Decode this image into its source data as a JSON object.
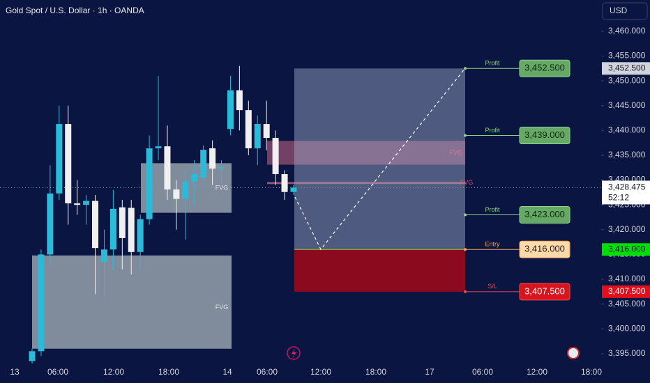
{
  "chart_data": {
    "type": "candlestick",
    "title": "Gold Spot / U.S. Dollar · 1h · OANDA",
    "currency": "USD",
    "up_color": "#2bbad8",
    "down_color": "#f0f0f0",
    "open": [
      3393.5,
      3395.5,
      3415,
      3427.3,
      3441.3,
      3425.3,
      3425,
      3425.8,
      3413.5,
      3416,
      3424.5,
      3424.4,
      3415.5,
      3422.1,
      3436.4,
      3436.8,
      3428.1,
      3426.2,
      3429.7,
      3430.5,
      3436.4,
      3432.3,
      3440.3,
      3448.1,
      3444.1,
      3436.4,
      3441.3,
      3438.5,
      3431.2,
      3427.6
    ],
    "high": [
      3396,
      3416,
      3433,
      3445,
      3445,
      3430,
      3427,
      3427,
      3420,
      3428,
      3426,
      3426,
      3423,
      3439,
      3451,
      3441,
      3430,
      3432,
      3434,
      3437,
      3438,
      3434,
      3451,
      3453,
      3446,
      3443,
      3446,
      3440,
      3432,
      3429
    ],
    "low": [
      3393,
      3394.5,
      3413,
      3426,
      3421,
      3423,
      3421,
      3407,
      3406,
      3412,
      3412,
      3411,
      3412,
      3421,
      3434,
      3426,
      3420,
      3418,
      3425,
      3428,
      3429,
      3429,
      3439,
      3440,
      3435,
      3433,
      3436,
      3429,
      3426,
      3427
    ],
    "close": [
      3395.5,
      3415,
      3427.3,
      3441.3,
      3425.3,
      3425,
      3425.8,
      3416.3,
      3416,
      3424.2,
      3418.3,
      3415.5,
      3422.1,
      3436.4,
      3436.8,
      3428.1,
      3426.2,
      3429.7,
      3431.2,
      3436.1,
      3432.3,
      3432.6,
      3448.1,
      3444.1,
      3436.4,
      3441.3,
      3438.5,
      3431.2,
      3427.6,
      3428.475
    ],
    "x_labels": [
      "13",
      "06:00",
      "12:00",
      "18:00",
      "14",
      "06:00",
      "12:00",
      "18:00",
      "17",
      "06:00",
      "12:00",
      "18:00"
    ],
    "ylim": [
      3393.3,
      3466.3
    ],
    "yticks": [
      {
        "value": 3395,
        "label": "3,395.000"
      },
      {
        "value": 3400,
        "label": "3,400.000"
      },
      {
        "value": 3405,
        "label": "3,405.000"
      },
      {
        "value": 3410,
        "label": "3,410.000"
      },
      {
        "value": 3415,
        "label": "3,415.000"
      },
      {
        "value": 3420,
        "label": "3,420.000"
      },
      {
        "value": 3425,
        "label": "3,425.000"
      },
      {
        "value": 3430,
        "label": "3,430.000"
      },
      {
        "value": 3435,
        "label": "3,435.000"
      },
      {
        "value": 3440,
        "label": "3,440.000"
      },
      {
        "value": 3445,
        "label": "3,445.000"
      },
      {
        "value": 3450,
        "label": "3,450.000"
      },
      {
        "value": 3455,
        "label": "3,455.000"
      },
      {
        "value": 3460,
        "label": "3,460.000"
      }
    ],
    "last_price": 3428.475,
    "last_price_label": "3,428.475",
    "countdown": "52:12",
    "zones": [
      {
        "label": "FVG",
        "top": 3414.8,
        "bottom": 3396
      },
      {
        "label": "FVG",
        "top": 3433.4,
        "bottom": 3423.4
      },
      {
        "label": "FVG",
        "top": 3437.9,
        "bottom": 3433.1
      },
      {
        "label": "FVG",
        "top": 3429.6,
        "bottom": 3429.2
      }
    ],
    "levels": [
      {
        "label": "Profit",
        "value": 3452.5,
        "value_label": "3,452.500"
      },
      {
        "label": "Profit",
        "value": 3439,
        "value_label": "3,439.000"
      },
      {
        "label": "Profit",
        "value": 3423,
        "value_label": "3,423.000"
      },
      {
        "label": "Entry",
        "value": 3416,
        "value_label": "3,416.000"
      },
      {
        "label": "S/L",
        "value": 3407.5,
        "value_label": "3,407.500"
      }
    ]
  }
}
